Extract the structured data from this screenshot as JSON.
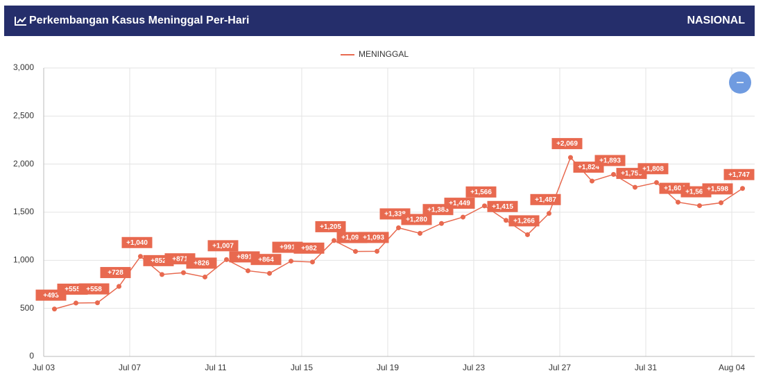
{
  "header": {
    "title": "Perkembangan Kasus Meninggal Per-Hari",
    "region": "NASIONAL"
  },
  "chart_data": {
    "type": "line",
    "categories": [
      "Jul 03",
      null,
      null,
      null,
      "Jul 07",
      null,
      null,
      null,
      "Jul 11",
      null,
      null,
      null,
      "Jul 15",
      null,
      null,
      null,
      "Jul 19",
      null,
      null,
      null,
      "Jul 23",
      null,
      null,
      null,
      "Jul 27",
      null,
      null,
      null,
      "Jul 31",
      null,
      null,
      null,
      "Aug 04"
    ],
    "series": [
      {
        "name": "MENINGGAL",
        "color": "#e8694f",
        "values": [
          493,
          555,
          558,
          728,
          1040,
          852,
          871,
          826,
          1007,
          891,
          864,
          991,
          982,
          1205,
          1092,
          1093,
          1338,
          1280,
          1383,
          1449,
          1566,
          1415,
          1266,
          1487,
          2069,
          1824,
          1893,
          1759,
          1808,
          1604,
          1568,
          1598,
          1747
        ],
        "value_labels": [
          "+493",
          "+555",
          "+558",
          "+728",
          "+1,040",
          "+852",
          "+871",
          "+826",
          "+1,007",
          "+891",
          "+864",
          "+991",
          "+982",
          "+1,205",
          "+1,092",
          "+1,093",
          "+1,338",
          "+1,280",
          "+1,383",
          "+1,449",
          "+1,566",
          "+1,415",
          "+1,266",
          "+1,487",
          "+2,069",
          "+1,824",
          "+1,893",
          "+1,759",
          "+1,808",
          "+1,604",
          "+1,568",
          "+1,598",
          "+1,747"
        ]
      }
    ],
    "ylim": [
      0,
      3000
    ],
    "yticks": [
      0,
      500,
      {
        "value": 1000,
        "label": "1,000"
      },
      {
        "value": 1500,
        "label": "1,500"
      },
      {
        "value": 2000,
        "label": "2,000"
      },
      {
        "value": 2500,
        "label": "2,500"
      },
      {
        "value": 3000,
        "label": "3,000"
      }
    ],
    "grid": true,
    "legend": "top"
  }
}
